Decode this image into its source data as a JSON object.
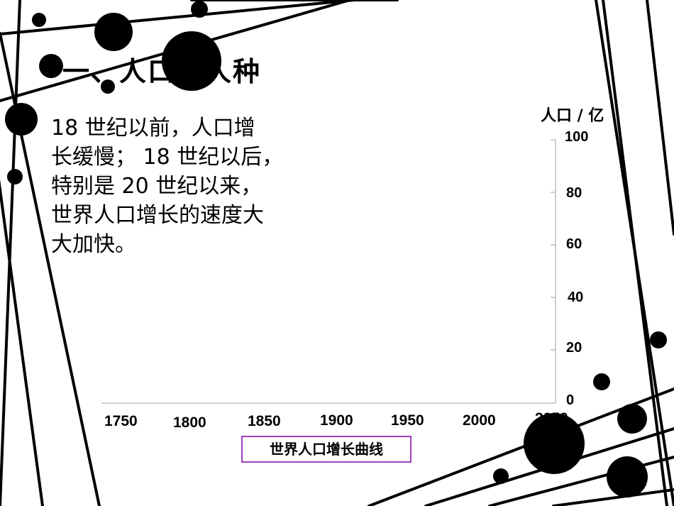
{
  "slide": {
    "title": "一、人口与人种",
    "paragraph_lines": [
      "18 世纪以前，人口增",
      "长缓慢； 18 世纪以后，",
      "特别是 20 世纪以来，",
      "世界人口增长的速度大",
      "大加快。"
    ]
  },
  "chart_data": {
    "type": "line",
    "title": "世界人口增长曲线",
    "ylabel": "人口 / 亿",
    "xlabel": "",
    "x_ticks": [
      "1750",
      "1800",
      "1850",
      "1900",
      "1950",
      "2000",
      "2050"
    ],
    "y_ticks": [
      "0",
      "20",
      "40",
      "60",
      "80",
      "100"
    ],
    "ylim": [
      0,
      100
    ],
    "series": []
  }
}
